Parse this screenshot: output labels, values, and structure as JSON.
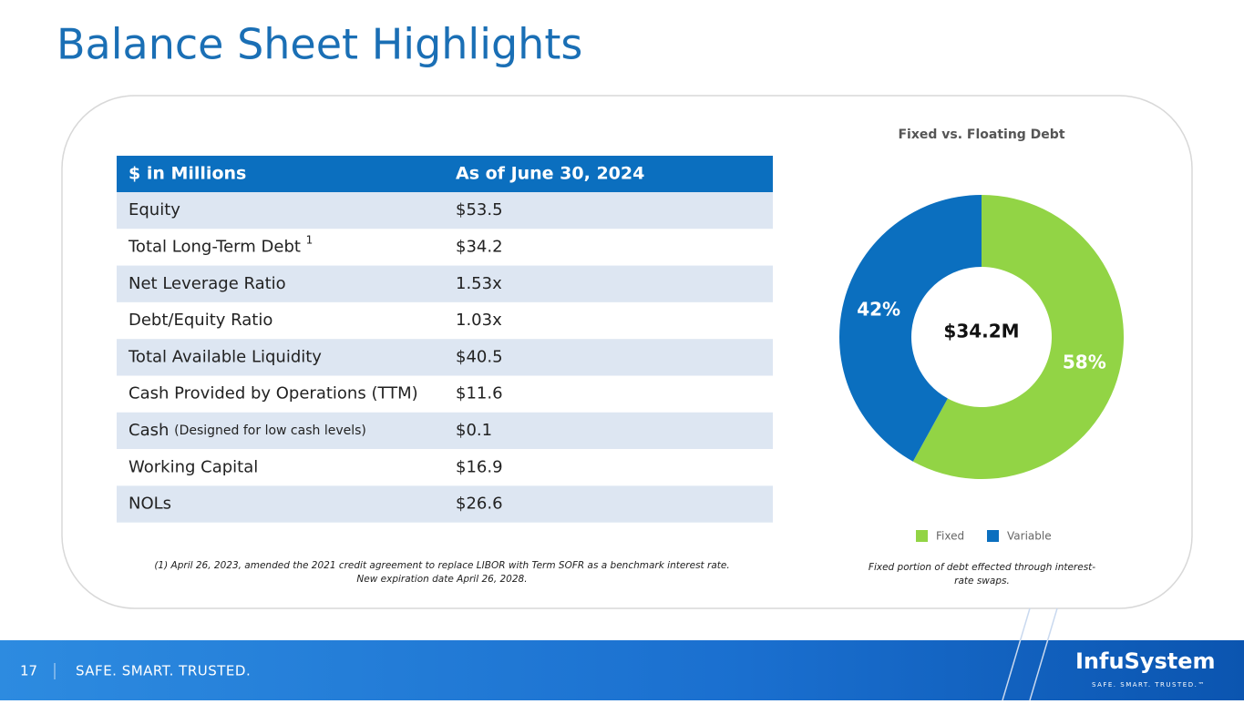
{
  "header": {
    "title": "Balance Sheet Highlights"
  },
  "table": {
    "columns": [
      "$ in Millions",
      "As of June 30, 2024"
    ],
    "rows": [
      {
        "label": "Equity",
        "value": "$53.5"
      },
      {
        "label": "Total Long-Term Debt",
        "sup": "1",
        "value": "$34.2"
      },
      {
        "label": "Net Leverage Ratio",
        "value": "1.53x"
      },
      {
        "label": "Debt/Equity Ratio",
        "value": "1.03x"
      },
      {
        "label": "Total Available Liquidity",
        "value": "$40.5"
      },
      {
        "label": "Cash Provided by Operations (TTM)",
        "value": "$11.6"
      },
      {
        "label": "Cash",
        "note": "(Designed for low cash levels)",
        "value": "$0.1"
      },
      {
        "label": "Working Capital",
        "value": "$16.9"
      },
      {
        "label": "NOLs",
        "value": "$26.6"
      }
    ],
    "footnote": [
      "(1) April 26, 2023, amended the 2021 credit agreement to replace LIBOR with Term SOFR as a benchmark interest rate.",
      "New expiration date April 26, 2028."
    ]
  },
  "chart_data": {
    "type": "pie",
    "donut": true,
    "title": "Fixed vs. Floating Debt",
    "center_label": "$34.2M",
    "categories": [
      "Fixed",
      "Variable"
    ],
    "values": [
      58,
      42
    ],
    "value_labels": [
      "58%",
      "42%"
    ],
    "colors": [
      "#92d445",
      "#0b6fbf"
    ],
    "legend": "bottom",
    "note": "Fixed portion of debt effected through interest-rate swaps."
  },
  "footer": {
    "page": "17",
    "tagline": "SAFE. SMART. TRUSTED.",
    "logo": "InfuSystem",
    "logo_tagline": "SAFE. SMART. TRUSTED.™"
  }
}
